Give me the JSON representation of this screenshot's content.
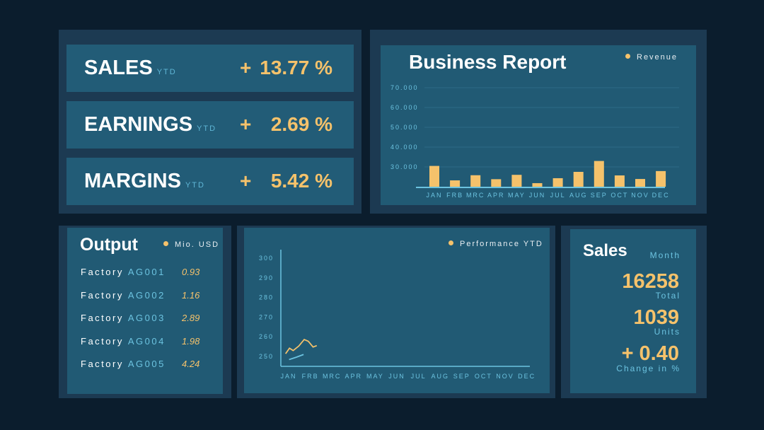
{
  "kpis": [
    {
      "label": "SALES",
      "suffix": "YTD",
      "sign": "+",
      "value": "13.77 %"
    },
    {
      "label": "EARNINGS",
      "suffix": "YTD",
      "sign": "+",
      "value": "2.69 %"
    },
    {
      "label": "MARGINS",
      "suffix": "YTD",
      "sign": "+",
      "value": "5.42 %"
    }
  ],
  "output": {
    "title": "Output",
    "legend": "Mio. USD",
    "rows": [
      {
        "name": "Factory",
        "code": "AG001",
        "value": "0.93"
      },
      {
        "name": "Factory",
        "code": "AG002",
        "value": "1.16"
      },
      {
        "name": "Factory",
        "code": "AG003",
        "value": "2.89"
      },
      {
        "name": "Factory",
        "code": "AG004",
        "value": "1.98"
      },
      {
        "name": "Factory",
        "code": "AG005",
        "value": "4.24"
      }
    ]
  },
  "sales_month": {
    "title": "Sales",
    "period": "Month",
    "total": "16258",
    "total_label": "Total",
    "units": "1039",
    "units_label": "Units",
    "change": "+ 0.40",
    "change_label": "Change in %"
  },
  "colors": {
    "accent": "#f5c26b",
    "axis": "#6cc3e0",
    "panel": "#215a74",
    "background": "#0b1d2d"
  },
  "chart_data": [
    {
      "type": "bar",
      "title": "Business Report",
      "legend": "Revenue",
      "legend_position": "top-right",
      "categories": [
        "JAN",
        "FRB",
        "MRC",
        "APR",
        "MAY",
        "JUN",
        "JUL",
        "AUG",
        "SEP",
        "OCT",
        "NOV",
        "DEC"
      ],
      "values": [
        30500,
        23200,
        25800,
        23800,
        26000,
        21800,
        24300,
        27500,
        33000,
        25700,
        23900,
        27900
      ],
      "yticks": [
        "30.000",
        "40.000",
        "50.000",
        "60.000",
        "70.000"
      ],
      "ylim": [
        20000,
        70000
      ],
      "grid": true
    },
    {
      "type": "line",
      "legend": "Performance YTD",
      "legend_position": "top-right",
      "categories": [
        "JAN",
        "FRB",
        "MRC",
        "APR",
        "MAY",
        "JUN",
        "JUL",
        "AUG",
        "SEP",
        "OCT",
        "NOV",
        "DEC"
      ],
      "yticks": [
        "250",
        "260",
        "270",
        "280",
        "290",
        "300"
      ],
      "ylim": [
        245,
        302
      ],
      "series": [
        {
          "color": "#f5c26b",
          "x": [
            -0.14,
            0.04,
            0.21,
            0.47,
            0.72,
            0.91,
            1.13,
            1.3
          ],
          "y": [
            251.4,
            254.2,
            253,
            255.3,
            258.6,
            257.7,
            254.8,
            255.5
          ]
        },
        {
          "color": "#6cc3e0",
          "x": [
            0.02,
            0.35,
            0.69
          ],
          "y": [
            248.4,
            249.6,
            251
          ]
        }
      ],
      "grid": false
    }
  ]
}
